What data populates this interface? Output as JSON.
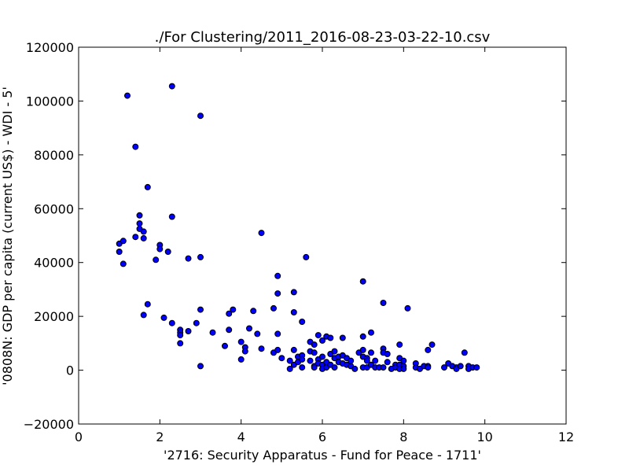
{
  "chart_data": {
    "type": "scatter",
    "title": "./For Clustering/2011_2016-08-23-03-22-10.csv",
    "xlabel": "'2716: Security Apparatus - Fund for Peace - 1711'",
    "ylabel": "'0808N: GDP per capita  (current US$) - WDI - 5'",
    "xlim": [
      0,
      12
    ],
    "ylim": [
      -20000,
      120000
    ],
    "xticks": [
      0,
      2,
      4,
      6,
      8,
      10,
      12
    ],
    "yticks": [
      -20000,
      0,
      20000,
      40000,
      60000,
      80000,
      100000,
      120000
    ],
    "xtick_labels": [
      "0",
      "2",
      "4",
      "6",
      "8",
      "10",
      "12"
    ],
    "ytick_labels": [
      "−20000",
      "0",
      "20000",
      "40000",
      "60000",
      "80000",
      "100000",
      "120000"
    ],
    "grid": false,
    "marker_color": "#0000ff",
    "series": [
      {
        "x": [
          1.0,
          1.0,
          1.1,
          1.1,
          1.2,
          1.4,
          1.4,
          1.5,
          1.5,
          1.5,
          1.6,
          1.6,
          1.6,
          1.7,
          1.7,
          1.9,
          2.0,
          2.0,
          2.1,
          2.2,
          2.3,
          2.3,
          2.3,
          2.5,
          2.5,
          2.5,
          2.5,
          2.7,
          2.7,
          2.9,
          3.0,
          3.0,
          3.0,
          3.0,
          3.3,
          3.6,
          3.7,
          3.7,
          3.8,
          4.0,
          4.0,
          4.1,
          4.1,
          4.2,
          4.3,
          4.4,
          4.5,
          4.5,
          4.8,
          4.8,
          4.9,
          4.9,
          4.9,
          4.9,
          5.0,
          5.2,
          5.2,
          5.3,
          5.3,
          5.3,
          5.3,
          5.4,
          5.4,
          5.5,
          5.5,
          5.5,
          5.5,
          5.6,
          5.7,
          5.7,
          5.7,
          5.8,
          5.8,
          5.8,
          5.8,
          5.9,
          5.9,
          5.9,
          6.0,
          6.0,
          6.0,
          6.0,
          6.1,
          6.1,
          6.1,
          6.2,
          6.2,
          6.2,
          6.3,
          6.3,
          6.3,
          6.4,
          6.4,
          6.5,
          6.5,
          6.5,
          6.6,
          6.6,
          6.7,
          6.7,
          6.8,
          6.9,
          7.0,
          7.0,
          7.0,
          7.0,
          7.0,
          7.1,
          7.1,
          7.1,
          7.2,
          7.2,
          7.2,
          7.3,
          7.3,
          7.4,
          7.5,
          7.5,
          7.5,
          7.5,
          7.6,
          7.6,
          7.7,
          7.8,
          7.8,
          7.9,
          7.9,
          7.9,
          7.9,
          8.0,
          8.0,
          8.0,
          8.1,
          8.3,
          8.3,
          8.4,
          8.5,
          8.6,
          8.6,
          8.6,
          8.7,
          9.0,
          9.1,
          9.2,
          9.3,
          9.3,
          9.4,
          9.5,
          9.6,
          9.6,
          9.7,
          9.8
        ],
        "y": [
          47000,
          44000,
          48000,
          39500,
          102000,
          83000,
          49500,
          57500,
          54500,
          52500,
          49000,
          51500,
          20500,
          68000,
          24500,
          41000,
          46500,
          45000,
          19500,
          44000,
          105500,
          57000,
          17500,
          15000,
          14000,
          13000,
          10000,
          41500,
          14500,
          17500,
          94500,
          42000,
          22500,
          1500,
          14000,
          9000,
          21000,
          15000,
          22500,
          10500,
          4000,
          8500,
          7000,
          15500,
          22000,
          13500,
          51000,
          8000,
          23000,
          6500,
          35000,
          28500,
          13500,
          7500,
          4500,
          3500,
          500,
          29000,
          21500,
          7500,
          2000,
          5000,
          3000,
          18000,
          5500,
          4000,
          1000,
          42000,
          10500,
          7000,
          3500,
          9500,
          6500,
          1500,
          1000,
          13000,
          4000,
          2500,
          11000,
          5000,
          2000,
          500,
          12500,
          3000,
          1000,
          12000,
          6000,
          2000,
          7000,
          4500,
          1000,
          5000,
          3000,
          12000,
          5500,
          2500,
          4500,
          2000,
          3500,
          1500,
          500,
          6500,
          33000,
          12500,
          7500,
          5000,
          1000,
          4500,
          3500,
          1000,
          14000,
          6500,
          2000,
          3500,
          1000,
          1000,
          25000,
          8000,
          6500,
          1000,
          6000,
          3000,
          500,
          2000,
          1000,
          9500,
          4500,
          2000,
          500,
          3500,
          1500,
          500,
          23000,
          2500,
          1000,
          500,
          1500,
          7500,
          1500,
          1000,
          9500,
          1000,
          2500,
          1500,
          1000,
          500,
          1500,
          6500,
          1500,
          500,
          1000,
          1000
        ]
      }
    ]
  }
}
